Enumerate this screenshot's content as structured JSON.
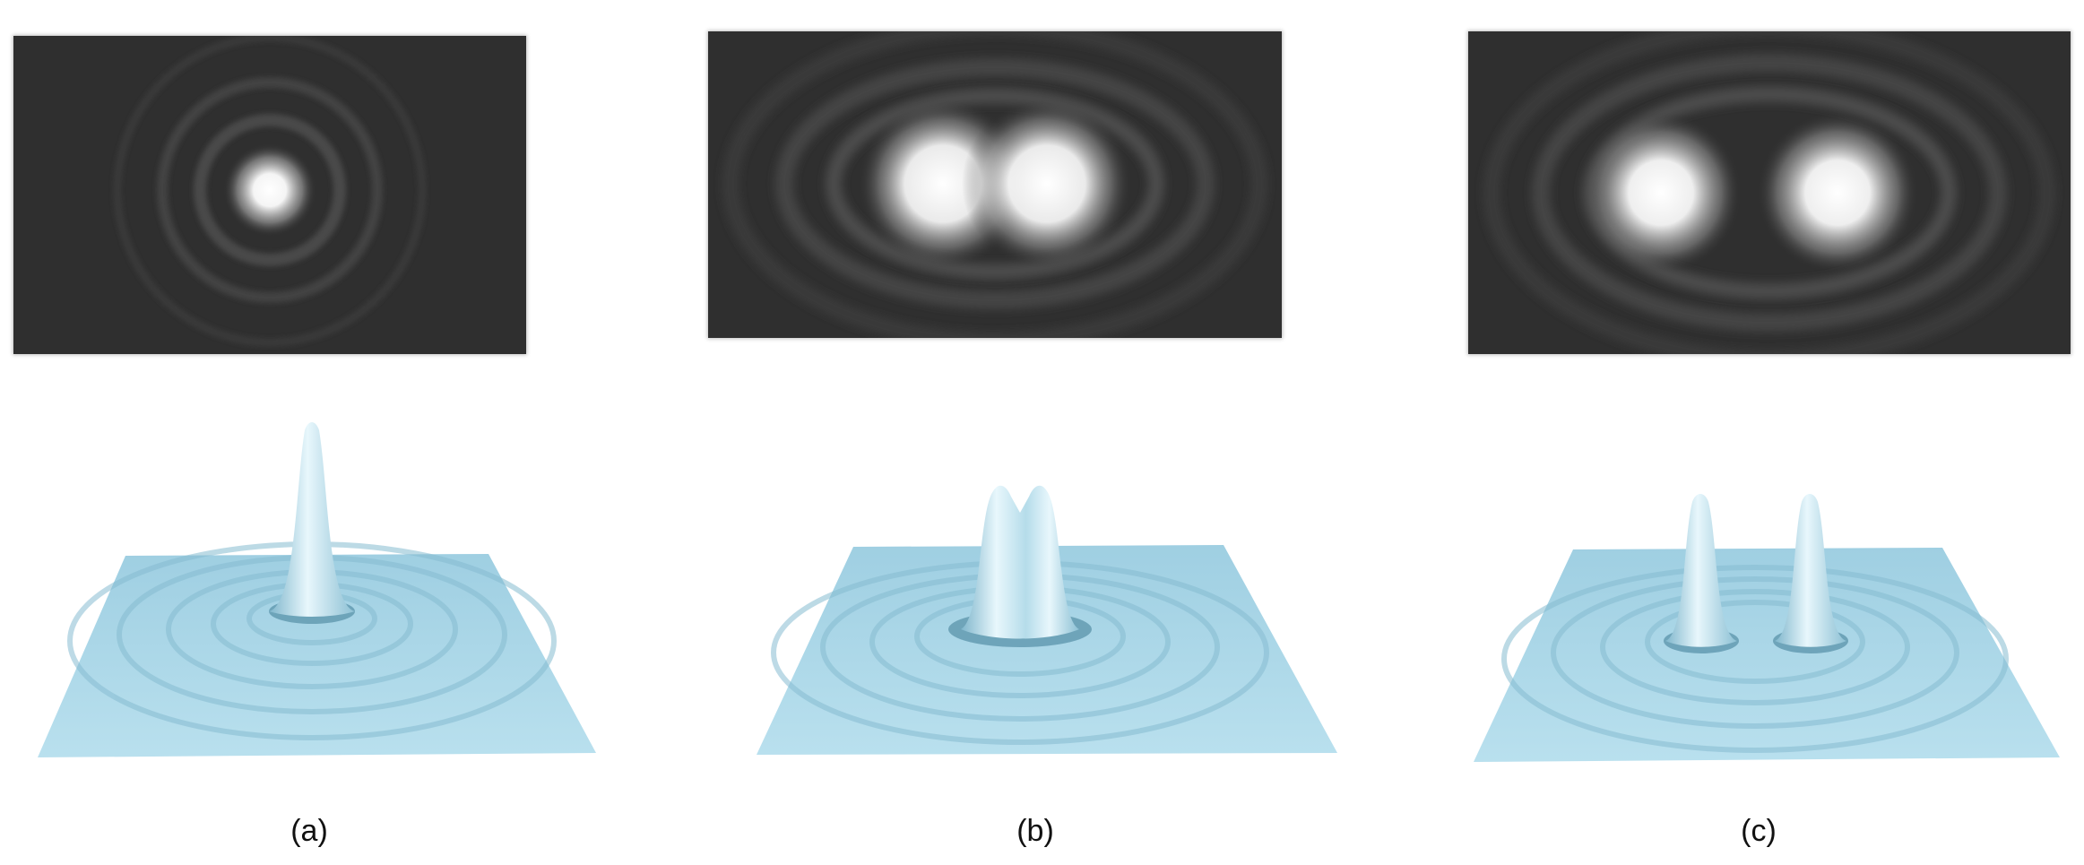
{
  "panels": [
    {
      "id": "a",
      "label": "(a)",
      "description_peaks": 1
    },
    {
      "id": "b",
      "label": "(b)",
      "description_peaks": 2
    },
    {
      "id": "c",
      "label": "(c)",
      "description_peaks": 2
    }
  ],
  "colors": {
    "image_background": "#2f2f2f",
    "spot_white": "#ffffff",
    "surface_light": "#e6f6fc",
    "surface_mid": "#aad7e8",
    "surface_dark": "#6ea7bf"
  }
}
